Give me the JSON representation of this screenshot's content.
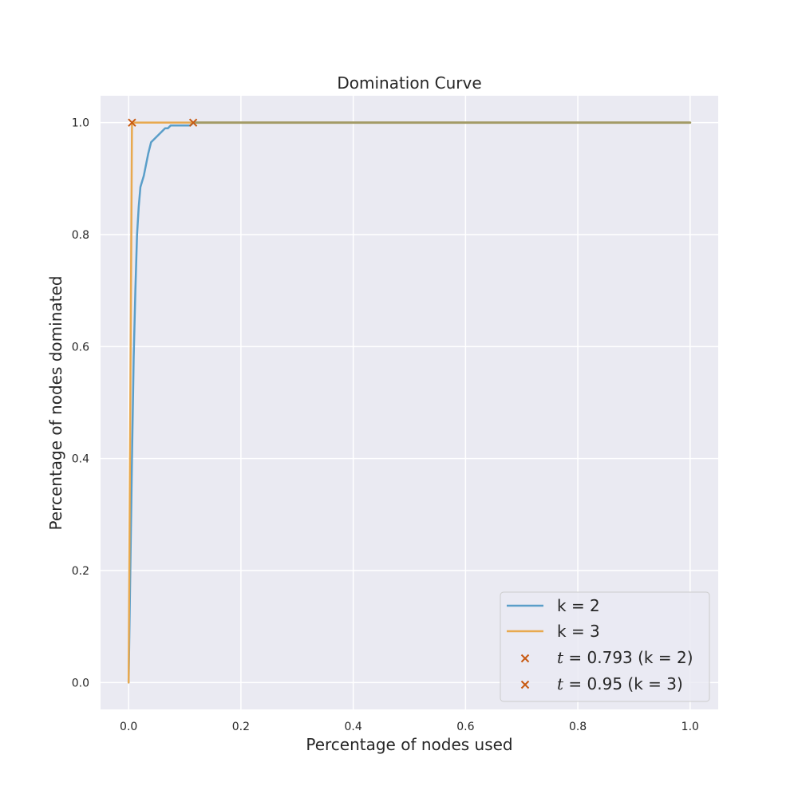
{
  "chart_data": {
    "type": "line",
    "title": "Domination Curve",
    "xlabel": "Percentage of nodes used",
    "ylabel": "Percentage of nodes dominated",
    "xlim": [
      -0.05,
      1.05
    ],
    "ylim": [
      -0.048,
      1.048
    ],
    "xticks": [
      0.0,
      0.2,
      0.4,
      0.6,
      0.8,
      1.0
    ],
    "yticks": [
      0.0,
      0.2,
      0.4,
      0.6,
      0.8,
      1.0
    ],
    "xtick_labels": [
      "0.0",
      "0.2",
      "0.4",
      "0.6",
      "0.8",
      "1.0"
    ],
    "ytick_labels": [
      "0.0",
      "0.2",
      "0.4",
      "0.6",
      "0.8",
      "1.0"
    ],
    "grid": true,
    "legend_position": "lower-right",
    "series": [
      {
        "name": "k = 2",
        "color": "#5a9ec9",
        "x": [
          0.0,
          0.003,
          0.006,
          0.009,
          0.012,
          0.015,
          0.018,
          0.021,
          0.024,
          0.027,
          0.03,
          0.035,
          0.04,
          0.05,
          0.06,
          0.065,
          0.07,
          0.075,
          0.08,
          0.09,
          0.1,
          0.11,
          0.115,
          0.12,
          0.2,
          0.4,
          0.6,
          0.8,
          1.0
        ],
        "y": [
          0.0,
          0.2,
          0.4,
          0.58,
          0.7,
          0.8,
          0.85,
          0.885,
          0.895,
          0.905,
          0.92,
          0.945,
          0.965,
          0.975,
          0.985,
          0.99,
          0.99,
          0.995,
          0.995,
          0.995,
          0.995,
          0.995,
          1.0,
          1.0,
          1.0,
          1.0,
          1.0,
          1.0,
          1.0
        ]
      },
      {
        "name": "k = 3",
        "color": "#e8a94f",
        "x": [
          0.0,
          0.003,
          0.006,
          0.1,
          0.2,
          0.4,
          0.6,
          0.8,
          1.0
        ],
        "y": [
          0.0,
          0.5,
          1.0,
          1.0,
          1.0,
          1.0,
          1.0,
          1.0,
          1.0
        ]
      }
    ],
    "overlap_color": "#a39b66",
    "markers": [
      {
        "label_var": "t",
        "label_rest": " = 0.793 (k = 2)",
        "x": 0.115,
        "y": 1.0,
        "color": "#c85a12"
      },
      {
        "label_var": "t",
        "label_rest": " = 0.95 (k = 3)",
        "x": 0.006,
        "y": 1.0,
        "color": "#c85a12"
      }
    ]
  }
}
